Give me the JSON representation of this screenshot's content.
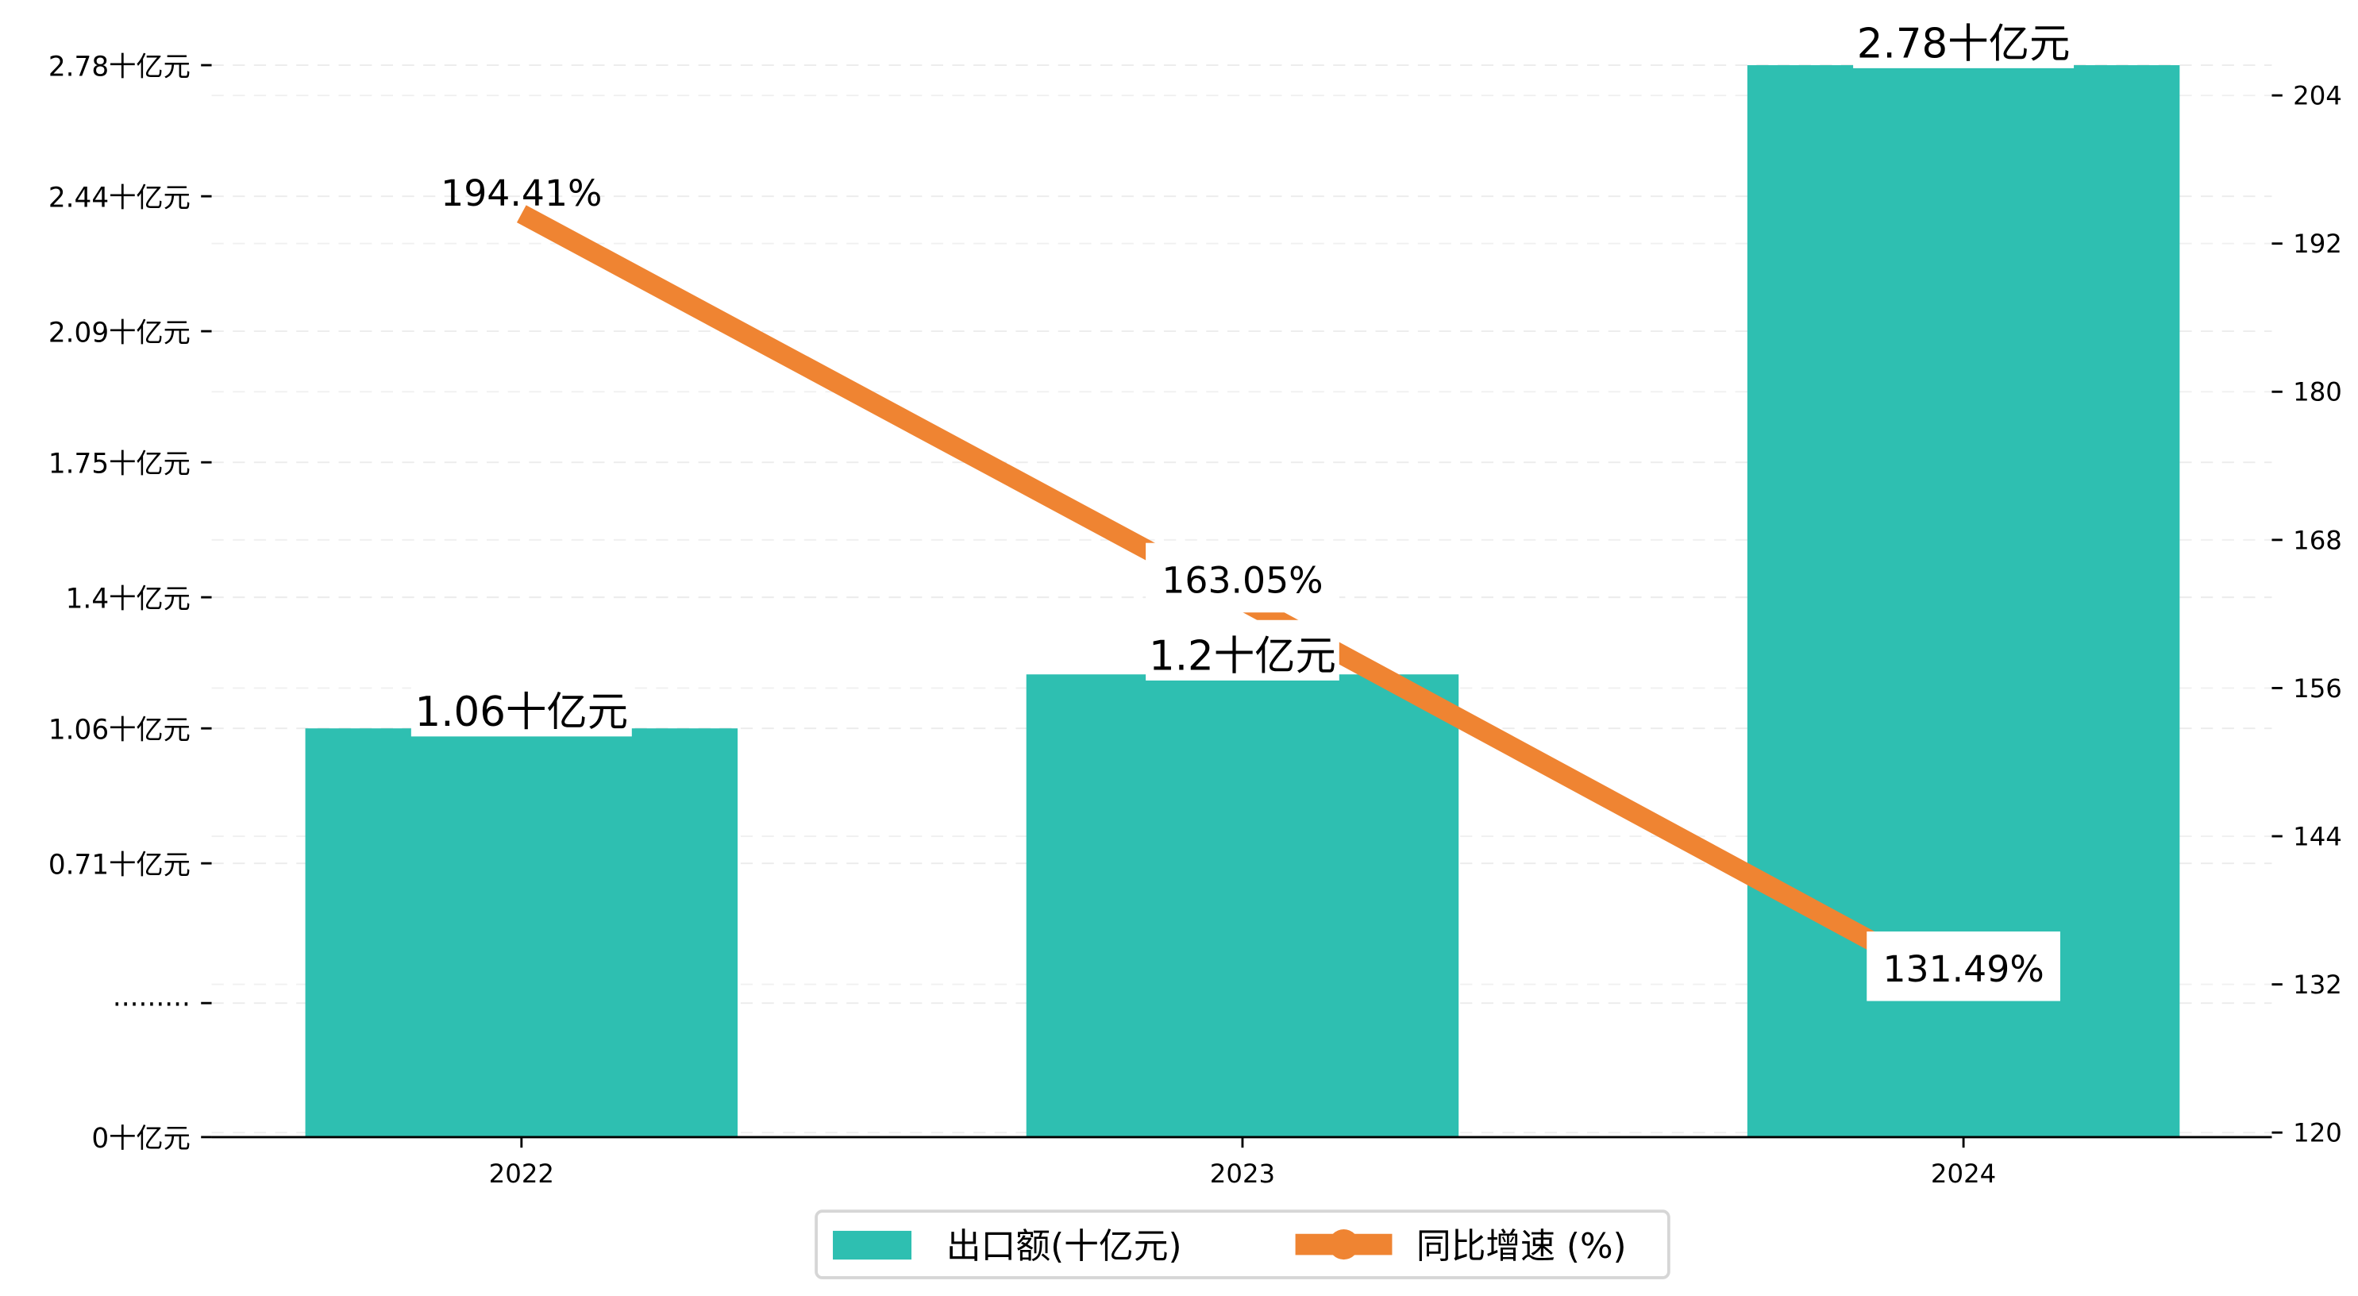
{
  "chart_data": {
    "type": "bar+line",
    "categories": [
      "2022",
      "2023",
      "2024"
    ],
    "series": [
      {
        "name": "出口额(十亿元)",
        "type": "bar",
        "axis": "left",
        "values": [
          1.06,
          1.2,
          2.78
        ],
        "labels": [
          "1.06十亿元",
          "1.2十亿元",
          "2.78十亿元"
        ],
        "color": "#2ebfb1"
      },
      {
        "name": "同比增速 (%)",
        "type": "line",
        "axis": "right",
        "values": [
          194.41,
          163.05,
          131.49
        ],
        "labels": [
          "194.41%",
          "163.05%",
          "131.49%"
        ],
        "color": "#ef8432"
      }
    ],
    "left_axis": {
      "ylim": [
        0,
        2.78
      ],
      "ticks": [
        0,
        0.3475,
        0.71,
        1.06,
        1.4,
        1.75,
        2.09,
        2.44,
        2.78
      ],
      "tick_labels": [
        "0十亿元",
        "·········",
        "0.71十亿元",
        "1.06十亿元",
        "1.4十亿元",
        "1.75十亿元",
        "2.09十亿元",
        "2.44十亿元",
        "2.78十亿元"
      ]
    },
    "right_axis": {
      "ylim": [
        120,
        204
      ],
      "ticks": [
        120,
        132,
        144,
        156,
        168,
        180,
        192,
        204
      ],
      "tick_labels": [
        "120",
        "132",
        "144",
        "156",
        "168",
        "180",
        "192",
        "204"
      ]
    },
    "grid": true,
    "legend": {
      "placement": "bottom-center",
      "entries": [
        "出口额(十亿元)",
        "同比增速 (%)"
      ]
    }
  }
}
